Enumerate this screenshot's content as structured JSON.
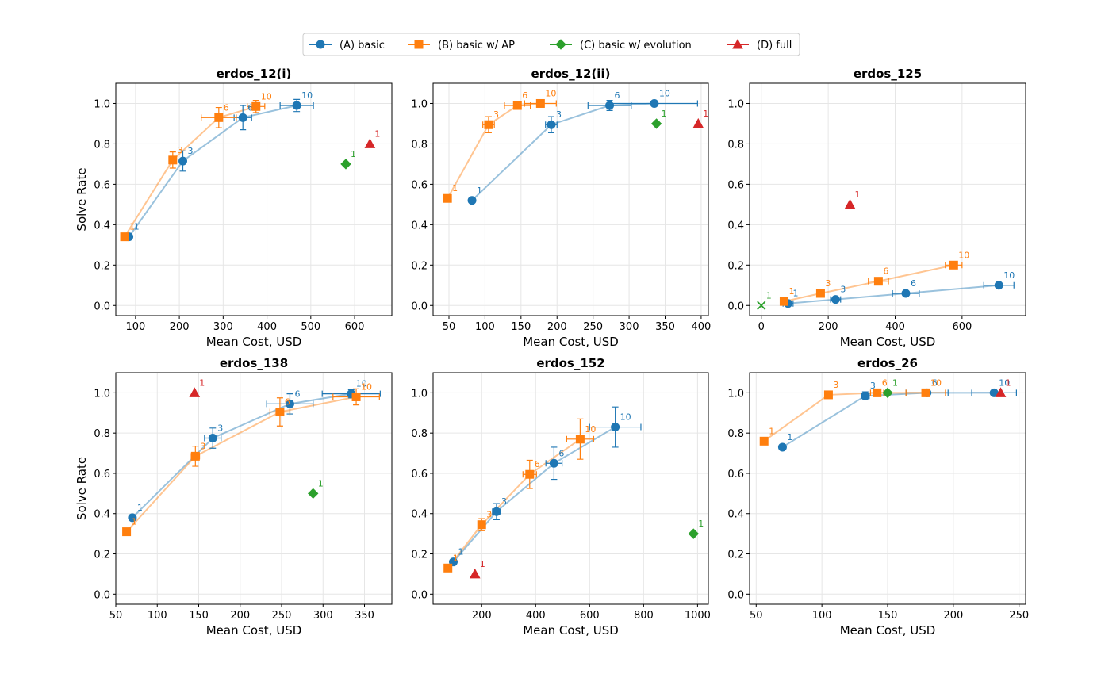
{
  "legend": [
    {
      "label": "(A) basic",
      "color": "#1f77b4",
      "marker": "circle"
    },
    {
      "label": "(B) basic w/ AP",
      "color": "#ff7f0e",
      "marker": "square"
    },
    {
      "label": "(C) basic w/ evolution",
      "color": "#2ca02c",
      "marker": "diamond"
    },
    {
      "label": "(D) full",
      "color": "#d62728",
      "marker": "triangle"
    }
  ],
  "chart_data": [
    {
      "type": "scatter",
      "title": "erdos_12(i)",
      "xlabel": "Mean Cost, USD",
      "ylabel": "Solve Rate",
      "xlim": [
        55,
        685
      ],
      "ylim": [
        -0.05,
        1.1
      ],
      "xticks": [
        100,
        200,
        300,
        400,
        500,
        600
      ],
      "yticks": [
        0.0,
        0.2,
        0.4,
        0.6,
        0.8,
        1.0
      ],
      "grid": true,
      "series": [
        {
          "name": "(A) basic",
          "points": [
            {
              "x": 85,
              "y": 0.34,
              "label": "1",
              "yerr": 0.0,
              "xerr": 0
            },
            {
              "x": 208,
              "y": 0.715,
              "label": "3",
              "yerr": 0.05,
              "xerr": 0
            },
            {
              "x": 345,
              "y": 0.93,
              "label": "6",
              "yerr": 0.06,
              "xerr": 20
            },
            {
              "x": 468,
              "y": 0.99,
              "label": "10",
              "yerr": 0.03,
              "xerr": 38
            }
          ]
        },
        {
          "name": "(B) basic w/ AP",
          "points": [
            {
              "x": 75,
              "y": 0.34,
              "label": "1",
              "yerr": 0.0,
              "xerr": 0
            },
            {
              "x": 185,
              "y": 0.72,
              "label": "3",
              "yerr": 0.04,
              "xerr": 5
            },
            {
              "x": 290,
              "y": 0.93,
              "label": "6",
              "yerr": 0.05,
              "xerr": 40
            },
            {
              "x": 375,
              "y": 0.985,
              "label": "10",
              "yerr": 0.03,
              "xerr": 20
            }
          ]
        },
        {
          "name": "(C) basic w/ evolution",
          "points": [
            {
              "x": 580,
              "y": 0.7,
              "label": "1"
            }
          ]
        },
        {
          "name": "(D) full",
          "points": [
            {
              "x": 635,
              "y": 0.8,
              "label": "1"
            }
          ]
        }
      ]
    },
    {
      "type": "scatter",
      "title": "erdos_12(ii)",
      "xlabel": "Mean Cost, USD",
      "ylabel": "",
      "xlim": [
        28,
        410
      ],
      "ylim": [
        -0.05,
        1.1
      ],
      "xticks": [
        50,
        100,
        150,
        200,
        250,
        300,
        350,
        400
      ],
      "yticks": [
        0.0,
        0.2,
        0.4,
        0.6,
        0.8,
        1.0
      ],
      "grid": true,
      "series": [
        {
          "name": "(A) basic",
          "points": [
            {
              "x": 82,
              "y": 0.52,
              "label": "1",
              "yerr": 0.0,
              "xerr": 0
            },
            {
              "x": 192,
              "y": 0.895,
              "label": "3",
              "yerr": 0.04,
              "xerr": 8
            },
            {
              "x": 273,
              "y": 0.99,
              "label": "6",
              "yerr": 0.025,
              "xerr": 30
            },
            {
              "x": 335,
              "y": 1.0,
              "label": "10",
              "yerr": 0.0,
              "xerr": 60
            }
          ]
        },
        {
          "name": "(B) basic w/ AP",
          "points": [
            {
              "x": 48,
              "y": 0.53,
              "label": "1",
              "yerr": 0.0,
              "xerr": 0
            },
            {
              "x": 105,
              "y": 0.895,
              "label": "3",
              "yerr": 0.04,
              "xerr": 8
            },
            {
              "x": 145,
              "y": 0.99,
              "label": "6",
              "yerr": 0.01,
              "xerr": 18
            },
            {
              "x": 177,
              "y": 1.0,
              "label": "10",
              "yerr": 0.0,
              "xerr": 22
            }
          ]
        },
        {
          "name": "(C) basic w/ evolution",
          "points": [
            {
              "x": 338,
              "y": 0.9,
              "label": "1"
            }
          ]
        },
        {
          "name": "(D) full",
          "points": [
            {
              "x": 396,
              "y": 0.9,
              "label": "1"
            }
          ]
        }
      ]
    },
    {
      "type": "scatter",
      "title": "erdos_125",
      "xlabel": "Mean Cost, USD",
      "ylabel": "",
      "xlim": [
        -35,
        790
      ],
      "ylim": [
        -0.05,
        1.1
      ],
      "xticks": [
        0,
        200,
        400,
        600
      ],
      "yticks": [
        0.0,
        0.2,
        0.4,
        0.6,
        0.8,
        1.0
      ],
      "grid": true,
      "series": [
        {
          "name": "(A) basic",
          "points": [
            {
              "x": 80,
              "y": 0.01,
              "label": "1",
              "yerr": 0.0,
              "xerr": 15
            },
            {
              "x": 222,
              "y": 0.03,
              "label": "3",
              "yerr": 0.0,
              "xerr": 15
            },
            {
              "x": 432,
              "y": 0.06,
              "label": "6",
              "yerr": 0.0,
              "xerr": 40
            },
            {
              "x": 710,
              "y": 0.1,
              "label": "10",
              "yerr": 0.0,
              "xerr": 45
            }
          ]
        },
        {
          "name": "(B) basic w/ AP",
          "points": [
            {
              "x": 68,
              "y": 0.02,
              "label": "1",
              "yerr": 0.0,
              "xerr": 8
            },
            {
              "x": 177,
              "y": 0.06,
              "label": "3",
              "yerr": 0.0,
              "xerr": 10
            },
            {
              "x": 350,
              "y": 0.12,
              "label": "6",
              "yerr": 0.0,
              "xerr": 30
            },
            {
              "x": 575,
              "y": 0.2,
              "label": "10",
              "yerr": 0.0,
              "xerr": 25
            }
          ]
        },
        {
          "name": "(C) basic w/ evolution",
          "points": [
            {
              "x": 0,
              "y": 0.0,
              "label": "1",
              "marker": "x"
            }
          ]
        },
        {
          "name": "(D) full",
          "points": [
            {
              "x": 265,
              "y": 0.5,
              "label": "1"
            }
          ]
        }
      ]
    },
    {
      "type": "scatter",
      "title": "erdos_138",
      "xlabel": "Mean Cost, USD",
      "ylabel": "Solve Rate",
      "xlim": [
        50,
        383
      ],
      "ylim": [
        -0.05,
        1.1
      ],
      "xticks": [
        50,
        100,
        150,
        200,
        250,
        300,
        350
      ],
      "yticks": [
        0.0,
        0.2,
        0.4,
        0.6,
        0.8,
        1.0
      ],
      "grid": true,
      "series": [
        {
          "name": "(A) basic",
          "points": [
            {
              "x": 70,
              "y": 0.38,
              "label": "1",
              "yerr": 0.0,
              "xerr": 0
            },
            {
              "x": 167,
              "y": 0.775,
              "label": "3",
              "yerr": 0.05,
              "xerr": 10
            },
            {
              "x": 260,
              "y": 0.945,
              "label": "6",
              "yerr": 0.05,
              "xerr": 28
            },
            {
              "x": 334,
              "y": 0.995,
              "label": "10",
              "yerr": 0.02,
              "xerr": 35
            }
          ]
        },
        {
          "name": "(B) basic w/ AP",
          "points": [
            {
              "x": 63,
              "y": 0.31,
              "label": "1",
              "yerr": 0.0,
              "xerr": 0
            },
            {
              "x": 146,
              "y": 0.685,
              "label": "3",
              "yerr": 0.05,
              "xerr": 5
            },
            {
              "x": 248,
              "y": 0.905,
              "label": "6",
              "yerr": 0.07,
              "xerr": 12
            },
            {
              "x": 340,
              "y": 0.98,
              "label": "10",
              "yerr": 0.04,
              "xerr": 28
            }
          ]
        },
        {
          "name": "(C) basic w/ evolution",
          "points": [
            {
              "x": 288,
              "y": 0.5,
              "label": "1"
            }
          ]
        },
        {
          "name": "(D) full",
          "points": [
            {
              "x": 145,
              "y": 1.0,
              "label": "1"
            }
          ]
        }
      ]
    },
    {
      "type": "scatter",
      "title": "erdos_152",
      "xlabel": "Mean Cost, USD",
      "ylabel": "",
      "xlim": [
        20,
        1040
      ],
      "ylim": [
        -0.05,
        1.1
      ],
      "xticks": [
        200,
        400,
        600,
        800,
        1000
      ],
      "yticks": [
        0.0,
        0.2,
        0.4,
        0.6,
        0.8,
        1.0
      ],
      "grid": true,
      "series": [
        {
          "name": "(A) basic",
          "points": [
            {
              "x": 95,
              "y": 0.16,
              "label": "1",
              "yerr": 0.0,
              "xerr": 0
            },
            {
              "x": 255,
              "y": 0.41,
              "label": "3",
              "yerr": 0.04,
              "xerr": 15
            },
            {
              "x": 468,
              "y": 0.65,
              "label": "6",
              "yerr": 0.08,
              "xerr": 30
            },
            {
              "x": 695,
              "y": 0.83,
              "label": "10",
              "yerr": 0.1,
              "xerr": 95
            }
          ]
        },
        {
          "name": "(B) basic w/ AP",
          "points": [
            {
              "x": 75,
              "y": 0.13,
              "label": "1",
              "yerr": 0.0,
              "xerr": 0
            },
            {
              "x": 200,
              "y": 0.345,
              "label": "3",
              "yerr": 0.03,
              "xerr": 10
            },
            {
              "x": 378,
              "y": 0.595,
              "label": "6",
              "yerr": 0.07,
              "xerr": 25
            },
            {
              "x": 565,
              "y": 0.77,
              "label": "10",
              "yerr": 0.1,
              "xerr": 50
            }
          ]
        },
        {
          "name": "(C) basic w/ evolution",
          "points": [
            {
              "x": 985,
              "y": 0.3,
              "label": "1"
            }
          ]
        },
        {
          "name": "(D) full",
          "points": [
            {
              "x": 175,
              "y": 0.1,
              "label": "1"
            }
          ]
        }
      ]
    },
    {
      "type": "scatter",
      "title": "erdos_26",
      "xlabel": "Mean Cost, USD",
      "ylabel": "",
      "xlim": [
        45,
        255
      ],
      "ylim": [
        -0.05,
        1.1
      ],
      "xticks": [
        50,
        100,
        150,
        200,
        250
      ],
      "yticks": [
        0.0,
        0.2,
        0.4,
        0.6,
        0.8,
        1.0
      ],
      "grid": true,
      "series": [
        {
          "name": "(A) basic",
          "points": [
            {
              "x": 70,
              "y": 0.73,
              "label": "1",
              "yerr": 0.0,
              "xerr": 0
            },
            {
              "x": 133,
              "y": 0.985,
              "label": "3",
              "yerr": 0.02,
              "xerr": 3
            },
            {
              "x": 180,
              "y": 1.0,
              "label": "6",
              "yerr": 0.0,
              "xerr": 16
            },
            {
              "x": 231,
              "y": 1.0,
              "label": "10",
              "yerr": 0.0,
              "xerr": 17
            }
          ]
        },
        {
          "name": "(B) basic w/ AP",
          "points": [
            {
              "x": 56,
              "y": 0.76,
              "label": "1",
              "yerr": 0.0,
              "xerr": 0
            },
            {
              "x": 105,
              "y": 0.99,
              "label": "3",
              "yerr": 0.0,
              "xerr": 0
            },
            {
              "x": 142,
              "y": 1.0,
              "label": "6",
              "yerr": 0.0,
              "xerr": 5
            },
            {
              "x": 179,
              "y": 1.0,
              "label": "10",
              "yerr": 0.0,
              "xerr": 15
            }
          ]
        },
        {
          "name": "(C) basic w/ evolution",
          "points": [
            {
              "x": 150,
              "y": 1.0,
              "label": "1"
            }
          ]
        },
        {
          "name": "(D) full",
          "points": [
            {
              "x": 236,
              "y": 1.0,
              "label": "1"
            }
          ]
        }
      ]
    }
  ]
}
